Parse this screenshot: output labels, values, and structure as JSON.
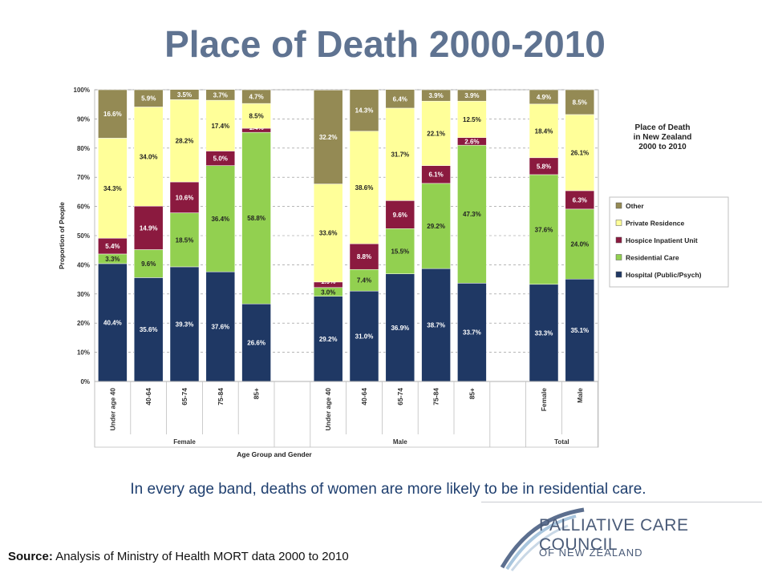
{
  "slide_title": "Place of Death 2000-2010",
  "caption": "In every age band, deaths of women are more likely to be in residential care.",
  "source": {
    "label": "Source:",
    "text": " Analysis of Ministry of Health MORT data 2000 to 2010"
  },
  "logo": {
    "line1": "PALLIATIVE CARE COUNCIL",
    "line2": "OF NEW ZEALAND"
  },
  "colors": {
    "hospital": "#1F3864",
    "residential": "#92D050",
    "hospice": "#8B1A3F",
    "private": "#FFFF99",
    "other": "#948A54"
  },
  "chart_data": {
    "type": "bar",
    "stacked": true,
    "title": "Place of Death\nin New Zealand\n2000 to 2010",
    "xlabel": "Age Group and Gender",
    "ylabel": "Proportion of People",
    "ylim": [
      0,
      100
    ],
    "yticks": [
      "0%",
      "10%",
      "20%",
      "30%",
      "40%",
      "50%",
      "60%",
      "70%",
      "80%",
      "90%",
      "100%"
    ],
    "groups": [
      {
        "name": "Female",
        "categories": [
          "Under age 40",
          "40-64",
          "65-74",
          "75-84",
          "85+"
        ]
      },
      {
        "name": "Male",
        "categories": [
          "Under age 40",
          "40-64",
          "65-74",
          "75-84",
          "85+"
        ]
      },
      {
        "name": "Total",
        "categories": [
          "Female",
          "Male"
        ]
      }
    ],
    "legend_position": "right",
    "series": [
      {
        "name": "Hospital (Public/Psych)",
        "key": "hospital",
        "values": [
          40.4,
          35.6,
          39.3,
          37.6,
          26.6,
          29.2,
          31.0,
          36.9,
          38.7,
          33.7,
          33.3,
          35.1
        ]
      },
      {
        "name": "Residential Care",
        "key": "residential",
        "values": [
          3.3,
          9.6,
          18.5,
          36.4,
          58.8,
          3.0,
          7.4,
          15.5,
          29.2,
          47.3,
          37.6,
          24.0
        ]
      },
      {
        "name": "Hospice Inpatient Unit",
        "key": "hospice",
        "values": [
          5.4,
          14.9,
          10.6,
          5.0,
          1.4,
          1.9,
          8.8,
          9.6,
          6.1,
          2.6,
          5.8,
          6.3
        ]
      },
      {
        "name": "Private Residence",
        "key": "private",
        "values": [
          34.3,
          34.0,
          28.2,
          17.4,
          8.5,
          33.6,
          38.6,
          31.7,
          22.1,
          12.5,
          18.4,
          26.1
        ]
      },
      {
        "name": "Other",
        "key": "other",
        "values": [
          16.6,
          5.9,
          3.5,
          3.7,
          4.7,
          32.2,
          14.3,
          6.4,
          3.9,
          3.9,
          4.9,
          8.5
        ]
      }
    ]
  }
}
